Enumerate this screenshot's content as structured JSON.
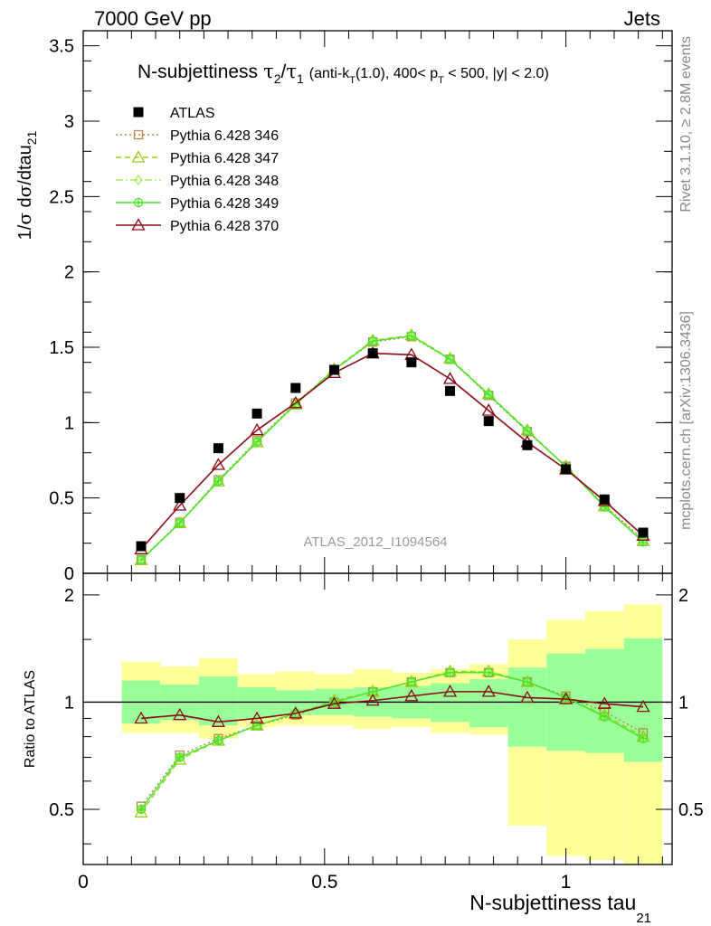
{
  "header": {
    "left": "7000 GeV pp",
    "right": "Jets"
  },
  "title": {
    "main_prefix": "N-subjettiness",
    "main_math": "τ₂/τ₁",
    "cuts": "(anti-k_T(1.0), 400< p_T < 500, |y| < 2.0)"
  },
  "side_text": {
    "rivet": "Rivet 3.1.10, ≥ 2.8M events",
    "mcplots": "mcplots.cern.ch [arXiv:1306.3436]"
  },
  "watermark": "ATLAS_2012_I1094564",
  "colors": {
    "data": "#000000",
    "p346": "#b5874f",
    "p347": "#9ccd1a",
    "p348": "#a6ef52",
    "p349": "#45e629",
    "p370": "#8b0a17",
    "band_stat": "#99ff99",
    "band_total": "#ffff99"
  },
  "chart_data": [
    {
      "type": "scatter",
      "panel": "main",
      "title": "N-subjettiness τ2/τ1 (anti-kT(1.0), 400< pT < 500, |y| < 2.0)",
      "xlabel": "N-subjettiness tau_21",
      "ylabel": "1/σ dσ/dtau_21",
      "xlim": [
        0,
        1.22
      ],
      "ylim": [
        0,
        3.6
      ],
      "x_ticks": [
        "0",
        "0.5",
        "1"
      ],
      "y_ticks": [
        "0",
        "0.5",
        "1",
        "1.5",
        "2",
        "2.5",
        "3",
        "3.5"
      ],
      "x": [
        0.12,
        0.2,
        0.28,
        0.36,
        0.44,
        0.52,
        0.6,
        0.68,
        0.76,
        0.84,
        0.92,
        1.0,
        1.08,
        1.16
      ],
      "legend_position": "top-left",
      "series": [
        {
          "name": "ATLAS",
          "key": "data",
          "marker": "square",
          "line": "none",
          "values": [
            0.18,
            0.5,
            0.83,
            1.06,
            1.23,
            1.35,
            1.46,
            1.4,
            1.21,
            1.01,
            0.85,
            0.69,
            0.49,
            0.27
          ]
        },
        {
          "name": "Pythia 6.428 346",
          "key": "p346",
          "marker": "square-open",
          "line": "dotted",
          "values": [
            0.092,
            0.338,
            0.62,
            0.88,
            1.13,
            1.35,
            1.535,
            1.57,
            1.42,
            1.18,
            0.94,
            0.71,
            0.45,
            0.225
          ]
        },
        {
          "name": "Pythia 6.428 347",
          "key": "p347",
          "marker": "triangle-open",
          "line": "dashed",
          "values": [
            0.088,
            0.333,
            0.61,
            0.87,
            1.12,
            1.355,
            1.545,
            1.58,
            1.425,
            1.19,
            0.95,
            0.71,
            0.445,
            0.215
          ]
        },
        {
          "name": "Pythia 6.428 348",
          "key": "p348",
          "marker": "diamond-open",
          "line": "dashdot",
          "values": [
            0.09,
            0.336,
            0.615,
            0.875,
            1.125,
            1.352,
            1.54,
            1.575,
            1.422,
            1.185,
            0.945,
            0.708,
            0.442,
            0.21
          ]
        },
        {
          "name": "Pythia 6.428 349",
          "key": "p349",
          "marker": "circle-cross",
          "line": "solid",
          "values": [
            0.089,
            0.334,
            0.612,
            0.872,
            1.122,
            1.35,
            1.54,
            1.576,
            1.42,
            1.186,
            0.946,
            0.707,
            0.441,
            0.208
          ]
        },
        {
          "name": "Pythia 6.428 370",
          "key": "p370",
          "marker": "triangle-open",
          "line": "solid",
          "values": [
            0.16,
            0.45,
            0.72,
            0.95,
            1.13,
            1.33,
            1.46,
            1.45,
            1.29,
            1.08,
            0.87,
            0.69,
            0.48,
            0.25
          ]
        }
      ]
    },
    {
      "type": "scatter",
      "panel": "ratio",
      "ylabel": "Ratio to ATLAS",
      "xlim": [
        0,
        1.22
      ],
      "ylim": [
        0.35,
        2.3
      ],
      "y_ticks": [
        "0.5",
        "1",
        "2"
      ],
      "x": [
        0.12,
        0.2,
        0.28,
        0.36,
        0.44,
        0.52,
        0.6,
        0.68,
        0.76,
        0.84,
        0.92,
        1.0,
        1.08,
        1.16
      ],
      "bins": [
        [
          0.08,
          0.16
        ],
        [
          0.16,
          0.24
        ],
        [
          0.24,
          0.32
        ],
        [
          0.32,
          0.4
        ],
        [
          0.4,
          0.48
        ],
        [
          0.48,
          0.56
        ],
        [
          0.56,
          0.64
        ],
        [
          0.64,
          0.72
        ],
        [
          0.72,
          0.8
        ],
        [
          0.8,
          0.88
        ],
        [
          0.88,
          0.96
        ],
        [
          0.96,
          1.04
        ],
        [
          1.04,
          1.12
        ],
        [
          1.12,
          1.2
        ]
      ],
      "band_stat": [
        [
          0.87,
          1.15
        ],
        [
          0.89,
          1.12
        ],
        [
          0.86,
          1.18
        ],
        [
          0.9,
          1.1
        ],
        [
          0.92,
          1.08
        ],
        [
          0.92,
          1.09
        ],
        [
          0.91,
          1.1
        ],
        [
          0.9,
          1.11
        ],
        [
          0.88,
          1.13
        ],
        [
          0.85,
          1.16
        ],
        [
          0.75,
          1.25
        ],
        [
          0.73,
          1.37
        ],
        [
          0.72,
          1.41
        ],
        [
          0.68,
          1.51
        ]
      ],
      "band_total": [
        [
          0.82,
          1.3
        ],
        [
          0.82,
          1.26
        ],
        [
          0.79,
          1.33
        ],
        [
          0.85,
          1.2
        ],
        [
          0.86,
          1.22
        ],
        [
          0.86,
          1.2
        ],
        [
          0.84,
          1.24
        ],
        [
          0.85,
          1.21
        ],
        [
          0.82,
          1.24
        ],
        [
          0.81,
          1.28
        ],
        [
          0.45,
          1.5
        ],
        [
          0.37,
          1.7
        ],
        [
          0.36,
          1.8
        ],
        [
          0.35,
          1.88
        ]
      ],
      "series": [
        {
          "name": "Pythia 6.428 346",
          "key": "p346",
          "values": [
            0.51,
            0.71,
            0.79,
            0.86,
            0.92,
            1.0,
            1.07,
            1.14,
            1.21,
            1.21,
            1.14,
            1.04,
            0.94,
            0.82
          ]
        },
        {
          "name": "Pythia 6.428 347",
          "key": "p347",
          "values": [
            0.49,
            0.69,
            0.78,
            0.86,
            0.93,
            1.01,
            1.07,
            1.14,
            1.22,
            1.22,
            1.14,
            1.03,
            0.92,
            0.8
          ]
        },
        {
          "name": "Pythia 6.428 348",
          "key": "p348",
          "values": [
            0.5,
            0.7,
            0.78,
            0.86,
            0.93,
            1.0,
            1.07,
            1.14,
            1.21,
            1.22,
            1.14,
            1.03,
            0.91,
            0.79
          ]
        },
        {
          "name": "Pythia 6.428 349",
          "key": "p349",
          "values": [
            0.5,
            0.7,
            0.78,
            0.86,
            0.93,
            1.0,
            1.07,
            1.14,
            1.21,
            1.21,
            1.14,
            1.03,
            0.91,
            0.79
          ]
        },
        {
          "name": "Pythia 6.428 370",
          "key": "p370",
          "values": [
            0.9,
            0.92,
            0.88,
            0.9,
            0.93,
            0.99,
            1.01,
            1.04,
            1.07,
            1.07,
            1.03,
            1.02,
            0.99,
            0.97
          ]
        }
      ]
    }
  ]
}
